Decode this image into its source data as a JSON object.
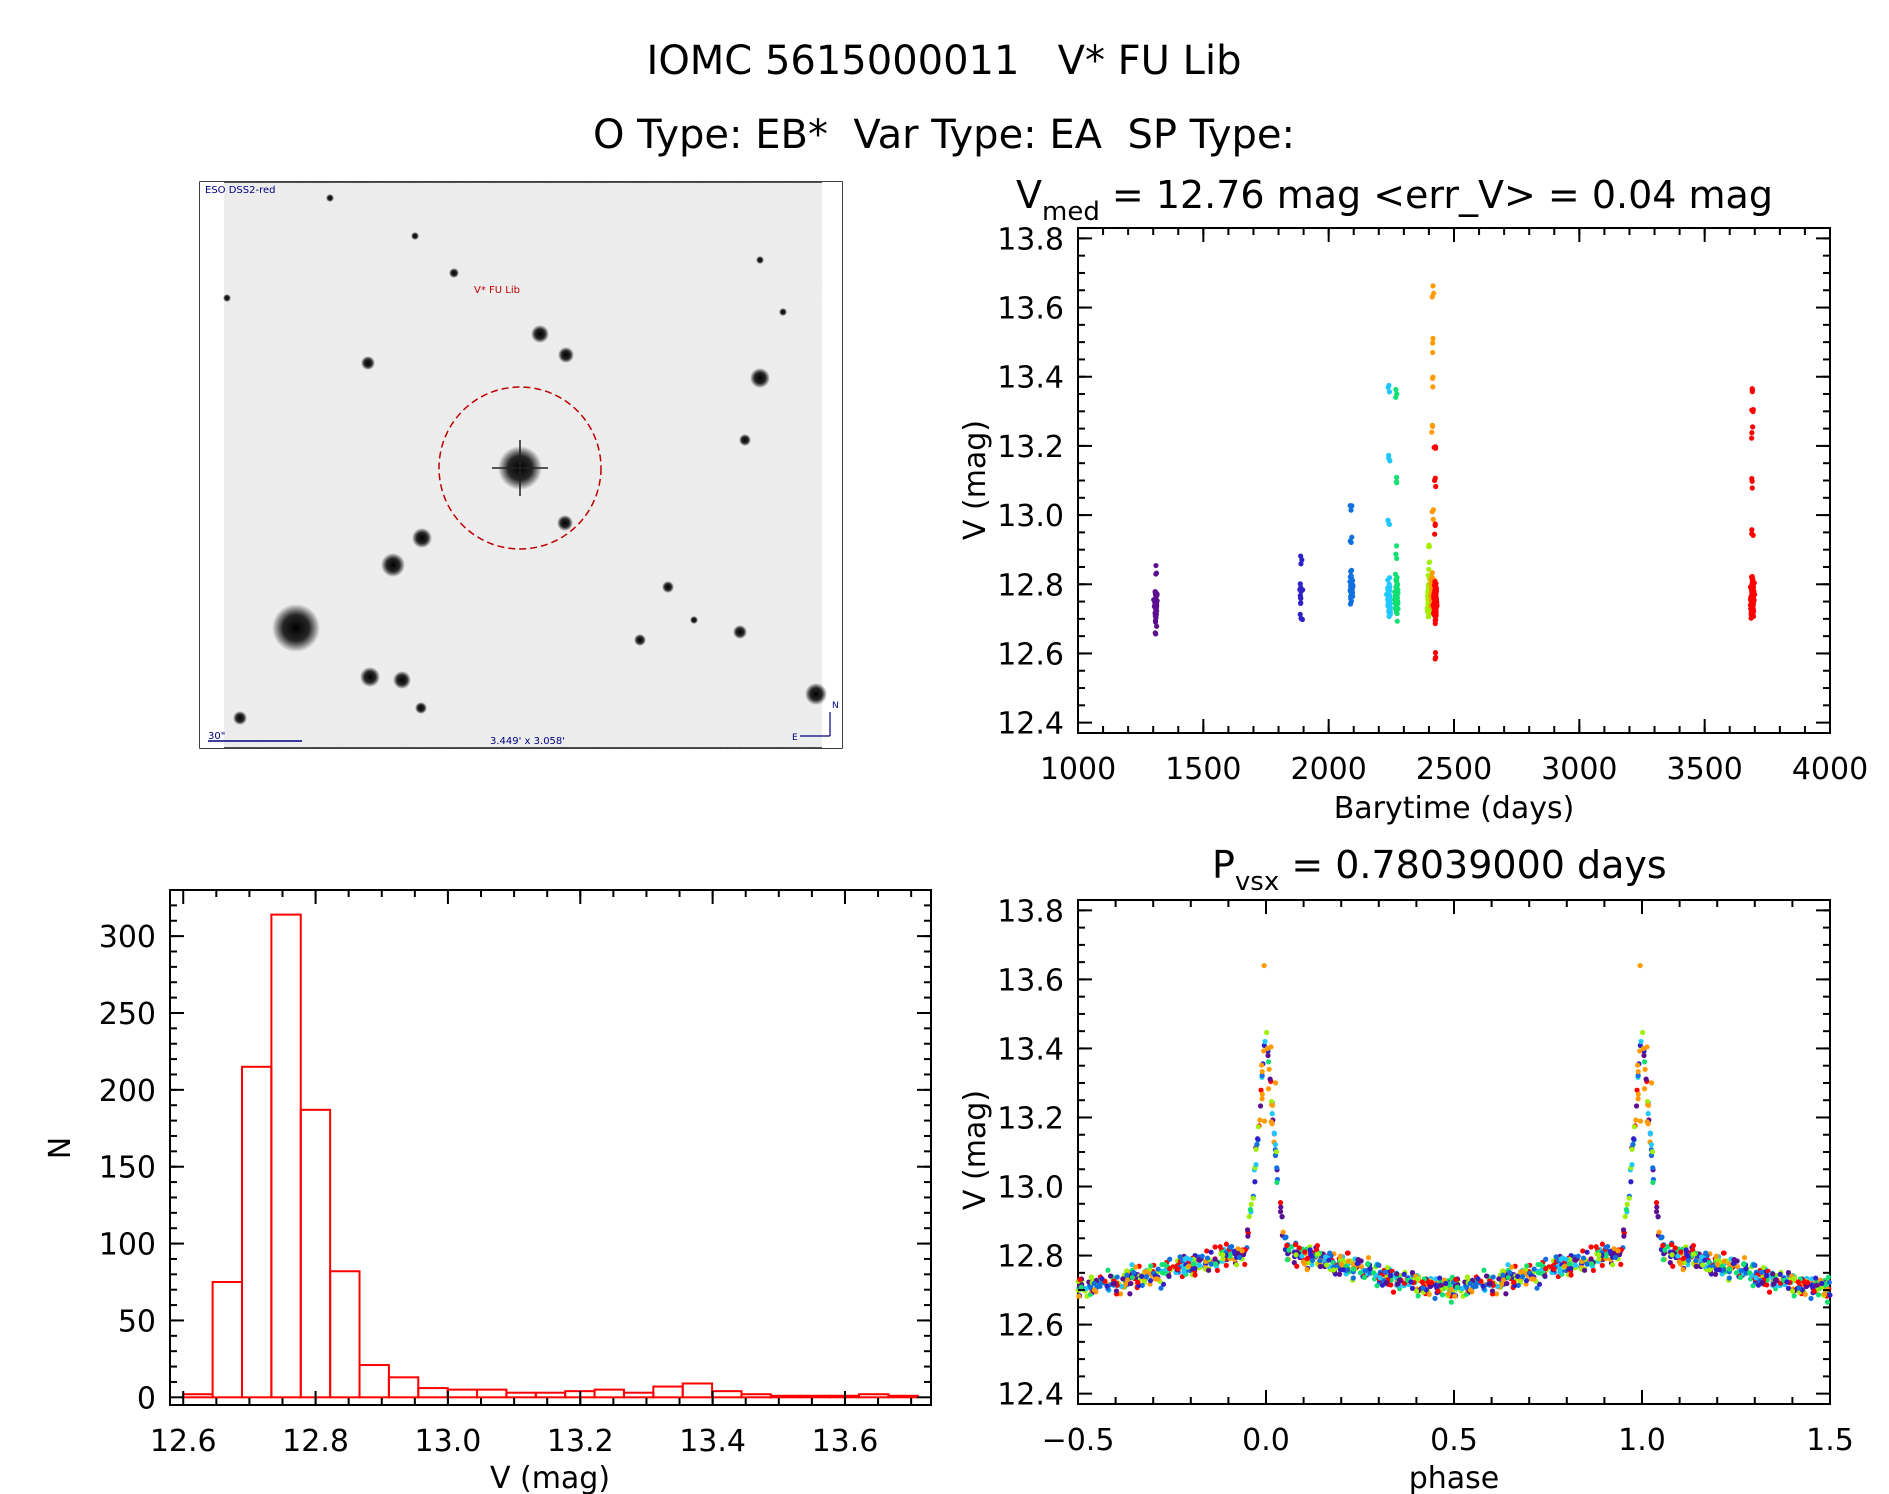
{
  "header": {
    "title_line1": "IOMC 5615000011   V* FU Lib",
    "title_line2": "O Type: EB*  Var Type: EA  SP Type:"
  },
  "finder": {
    "survey_label": "ESO DSS2-red",
    "object_label": "V* FU Lib",
    "scale_label": "30\"",
    "size_label": "3.449' x 3.058'",
    "north_label": "N",
    "east_label": "E"
  },
  "colors": {
    "histogram": "#ff0000",
    "finder_ring": "#c00000",
    "finder_text": "#000080",
    "seasons": [
      "#5b0f8f",
      "#3020c8",
      "#1070e0",
      "#20c8ff",
      "#10e070",
      "#a0f000",
      "#ff9a00",
      "#ff0000"
    ]
  },
  "chart_data": [
    {
      "id": "light_curve",
      "type": "scatter",
      "title_main": "V",
      "title_sub": "med",
      "title_rest": " = 12.76 mag <err_V> = 0.04 mag",
      "xlabel": "Barytime (days)",
      "ylabel": "V (mag)",
      "xlim": [
        1000,
        4000
      ],
      "ylim": [
        13.83,
        12.37
      ],
      "xticks": [
        "1000",
        "1500",
        "2000",
        "2500",
        "3000",
        "3500",
        "4000"
      ],
      "yticks": [
        "12.4",
        "12.6",
        "12.8",
        "13.0",
        "13.2",
        "13.4",
        "13.6",
        "13.8"
      ],
      "seasons": [
        {
          "t": 1310,
          "median": 12.75,
          "n": 40,
          "faint": [
            12.66,
            12.84
          ]
        },
        {
          "t": 1890,
          "median": 12.76,
          "n": 14,
          "faint": [
            12.71,
            12.87
          ]
        },
        {
          "t": 2090,
          "median": 12.79,
          "n": 40,
          "faint": [
            12.93,
            13.03
          ]
        },
        {
          "t": 2240,
          "median": 12.76,
          "n": 70,
          "faint": [
            12.98,
            13.18,
            13.36
          ]
        },
        {
          "t": 2270,
          "median": 12.76,
          "n": 90,
          "faint": [
            12.9,
            13.1,
            13.35
          ]
        },
        {
          "t": 2400,
          "median": 12.76,
          "n": 120,
          "faint": [
            12.86,
            12.92
          ]
        },
        {
          "t": 2415,
          "median": 12.78,
          "n": 130,
          "faint": [
            13.0,
            13.25,
            13.4,
            13.48,
            13.64
          ]
        },
        {
          "t": 2425,
          "median": 12.75,
          "n": 140,
          "faint": [
            12.6,
            12.95,
            13.1,
            13.2
          ]
        },
        {
          "t": 3690,
          "median": 12.76,
          "n": 150,
          "faint": [
            12.95,
            13.1,
            13.25,
            13.3,
            13.35
          ]
        }
      ]
    },
    {
      "id": "histogram",
      "type": "bar",
      "xlabel": "V (mag)",
      "ylabel": "N",
      "xlim": [
        12.58,
        13.73
      ],
      "ylim": [
        -5,
        330
      ],
      "xticks": [
        "12.6",
        "12.8",
        "13.0",
        "13.2",
        "13.4",
        "13.6"
      ],
      "yticks": [
        "0",
        "50",
        "100",
        "150",
        "200",
        "250",
        "300"
      ],
      "bin_width": 0.0444,
      "bin_start": 12.6,
      "counts": [
        2,
        75,
        215,
        314,
        187,
        82,
        21,
        13,
        6,
        5,
        5,
        3,
        3,
        4,
        5,
        3,
        7,
        9,
        4,
        2,
        1,
        1,
        1,
        2,
        1
      ]
    },
    {
      "id": "phase_curve",
      "type": "scatter",
      "title_main": "P",
      "title_sub": "vsx",
      "title_rest": " = 0.78039000 days",
      "xlabel": "phase",
      "ylabel": "V (mag)",
      "period_days": 0.78039,
      "xlim": [
        -0.5,
        1.5
      ],
      "ylim": [
        13.83,
        12.37
      ],
      "xticks": [
        "−0.5",
        "0.0",
        "0.5",
        "1.0",
        "1.5"
      ],
      "yticks": [
        "12.4",
        "12.6",
        "12.8",
        "13.0",
        "13.2",
        "13.4",
        "13.6",
        "13.8"
      ],
      "model": {
        "max_mag": 12.73,
        "primary_min": 13.42,
        "eclipse_halfwidth": 0.06,
        "scatter": 0.04
      }
    }
  ]
}
